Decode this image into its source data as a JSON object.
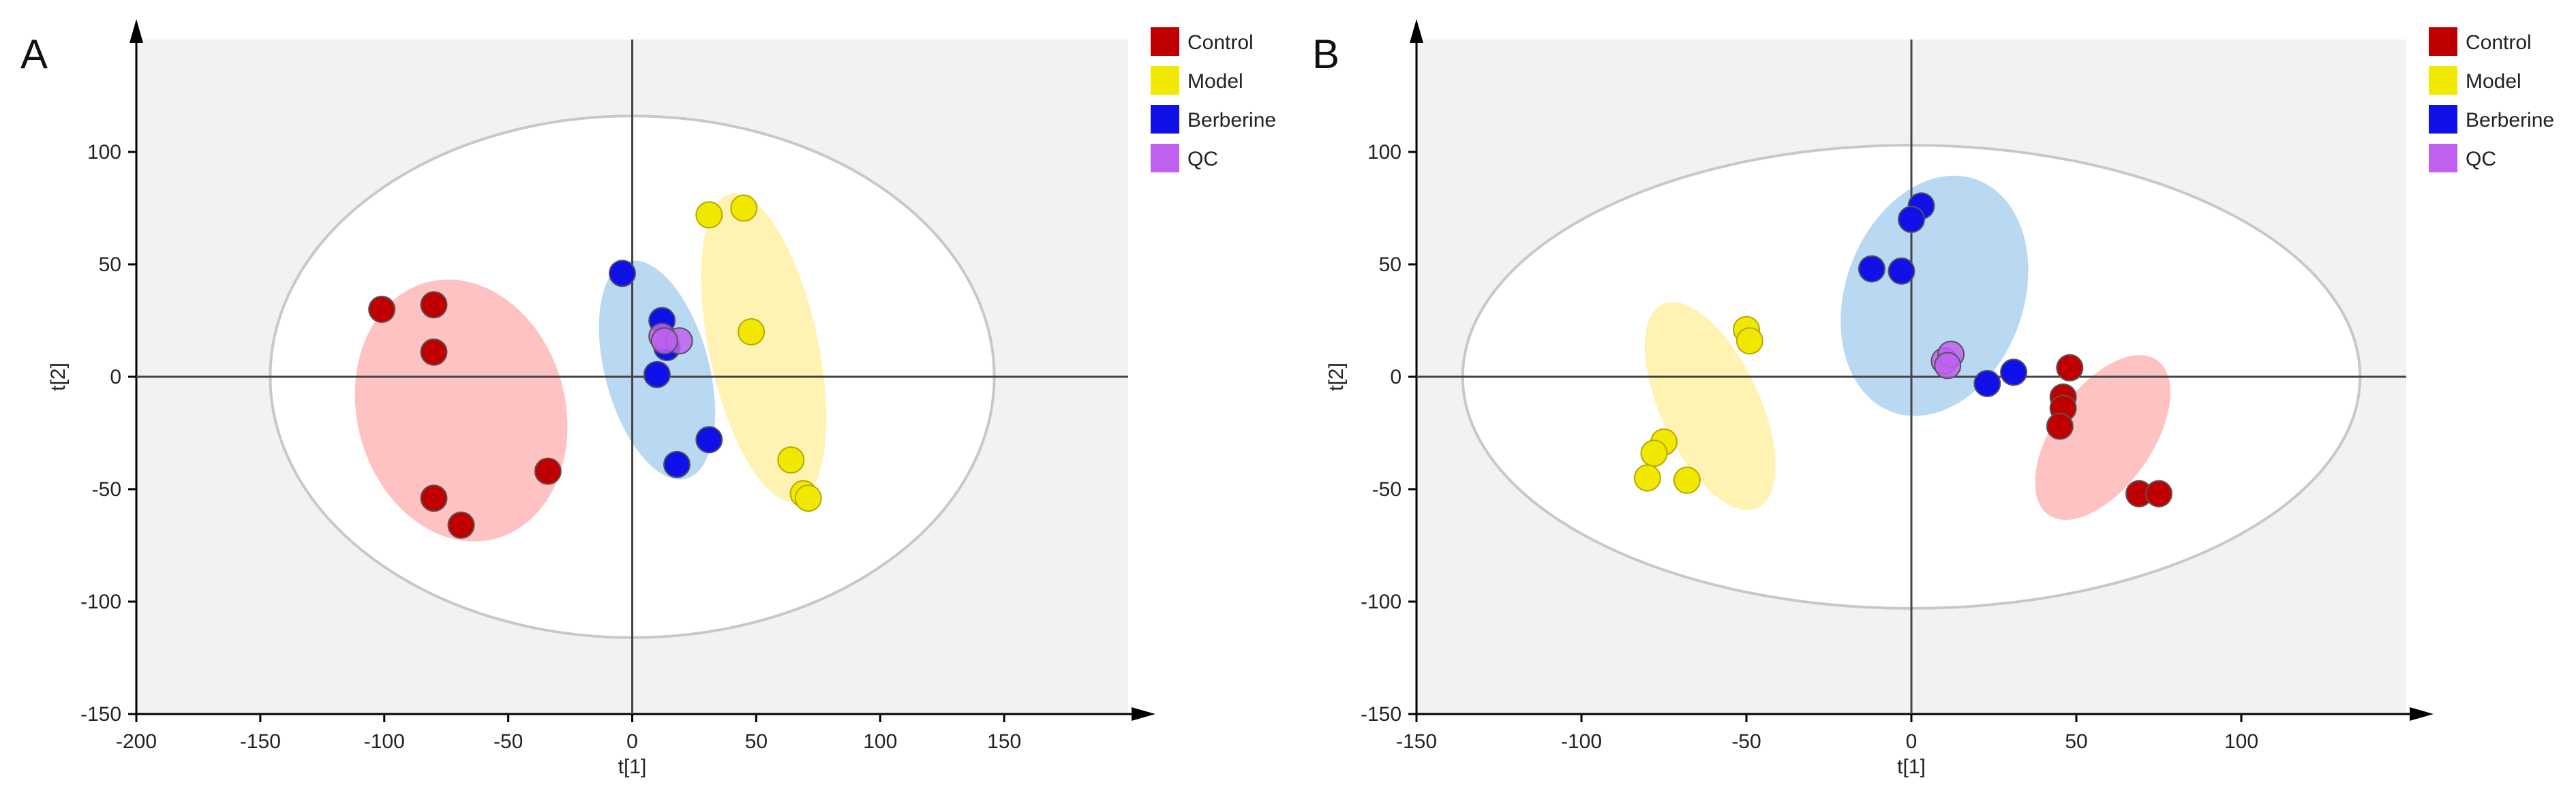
{
  "colors": {
    "plot_bg": "#f2f2f2",
    "axis": "#000000",
    "ellipse": "#c8c8c8",
    "Control": "#c00000",
    "Model": "#f0e800",
    "Berberine": "#1010e8",
    "QC": "#c060f0",
    "Control_fill": "#ffb3b3",
    "Model_fill": "#fff0a0",
    "Berberine_fill": "#a8d0f0"
  },
  "chart_data": [
    {
      "type": "scatter",
      "panel_label": "A",
      "xlabel": "t[1]",
      "ylabel": "t[2]",
      "xlim": [
        -200,
        200
      ],
      "ylim": [
        -150,
        150
      ],
      "xticks": [
        -200,
        -150,
        -100,
        -50,
        0,
        50,
        100,
        150
      ],
      "yticks": [
        -150,
        -100,
        -50,
        0,
        50,
        100
      ],
      "legend": [
        "Control",
        "Model",
        "Berberine",
        "QC"
      ],
      "hotelling_ellipse": {
        "cx": 0,
        "cy": 0,
        "rx": 146,
        "ry": 116
      },
      "group_ellipses": [
        {
          "group": "Control",
          "cx": -69,
          "cy": -15,
          "rx": 42,
          "ry": 59,
          "angle": 15
        },
        {
          "group": "Berberine",
          "cx": 10,
          "cy": 3,
          "rx": 21,
          "ry": 50,
          "angle": 15
        },
        {
          "group": "Model",
          "cx": 53,
          "cy": 13,
          "rx": 22,
          "ry": 70,
          "angle": 12
        }
      ],
      "series": [
        {
          "name": "Control",
          "points": [
            [
              -101,
              30
            ],
            [
              -80,
              32
            ],
            [
              -80,
              11
            ],
            [
              -80,
              -54
            ],
            [
              -69,
              -66
            ],
            [
              -34,
              -42
            ]
          ]
        },
        {
          "name": "Model",
          "points": [
            [
              31,
              72
            ],
            [
              45,
              75
            ],
            [
              48,
              20
            ],
            [
              64,
              -37
            ],
            [
              69,
              -52
            ],
            [
              71,
              -54
            ]
          ]
        },
        {
          "name": "Berberine",
          "points": [
            [
              -4,
              46
            ],
            [
              12,
              25
            ],
            [
              14,
              13
            ],
            [
              10,
              1
            ],
            [
              18,
              -39
            ],
            [
              31,
              -28
            ]
          ]
        },
        {
          "name": "QC",
          "points": [
            [
              12,
              18
            ],
            [
              19,
              16
            ],
            [
              13,
              16
            ]
          ]
        }
      ]
    },
    {
      "type": "scatter",
      "panel_label": "B",
      "xlabel": "t[1]",
      "ylabel": "t[2]",
      "xlim": [
        -150,
        150
      ],
      "ylim": [
        -150,
        150
      ],
      "xticks": [
        -150,
        -100,
        -50,
        0,
        50,
        100
      ],
      "yticks": [
        -150,
        -100,
        -50,
        0,
        50,
        100
      ],
      "legend": [
        "Control",
        "Model",
        "Berberine",
        "QC"
      ],
      "hotelling_ellipse": {
        "cx": 0,
        "cy": 0,
        "rx": 136,
        "ry": 103
      },
      "group_ellipses": [
        {
          "group": "Model",
          "cx": -61,
          "cy": -13,
          "rx": 15,
          "ry": 50,
          "angle": 25
        },
        {
          "group": "Berberine",
          "cx": 7,
          "cy": 36,
          "rx": 27,
          "ry": 55,
          "angle": -20
        },
        {
          "group": "Control",
          "cx": 58,
          "cy": -27,
          "rx": 15,
          "ry": 42,
          "angle": -35
        }
      ],
      "series": [
        {
          "name": "Control",
          "points": [
            [
              48,
              4
            ],
            [
              46,
              -9
            ],
            [
              46,
              -14
            ],
            [
              45,
              -22
            ],
            [
              69,
              -52
            ],
            [
              75,
              -52
            ]
          ]
        },
        {
          "name": "Model",
          "points": [
            [
              -50,
              21
            ],
            [
              -49,
              16
            ],
            [
              -75,
              -29
            ],
            [
              -78,
              -34
            ],
            [
              -80,
              -45
            ],
            [
              -68,
              -46
            ]
          ]
        },
        {
          "name": "Berberine",
          "points": [
            [
              3,
              76
            ],
            [
              0,
              70
            ],
            [
              -12,
              48
            ],
            [
              -3,
              47
            ],
            [
              23,
              -3
            ],
            [
              31,
              2
            ]
          ]
        },
        {
          "name": "QC",
          "points": [
            [
              10,
              7
            ],
            [
              12,
              10
            ],
            [
              11,
              5
            ]
          ]
        }
      ]
    }
  ]
}
